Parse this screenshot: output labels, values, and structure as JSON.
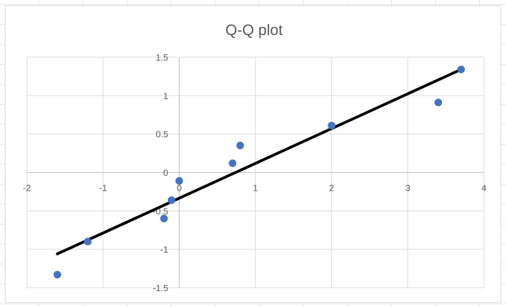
{
  "chart_data": {
    "type": "scatter",
    "title": "Q-Q plot",
    "xlabel": "",
    "ylabel": "",
    "xlim": [
      -2,
      4
    ],
    "ylim": [
      -1.5,
      1.5
    ],
    "x_ticks": [
      "-2",
      "-1",
      "0",
      "1",
      "2",
      "3",
      "4"
    ],
    "y_ticks": [
      "-1.5",
      "-1",
      "-0.5",
      "0",
      "0.5",
      "1",
      "1.5"
    ],
    "x_tick_values": [
      -2,
      -1,
      0,
      1,
      2,
      3,
      4
    ],
    "y_tick_values": [
      -1.5,
      -1,
      -0.5,
      0,
      0.5,
      1,
      1.5
    ],
    "grid": true,
    "legend": "none",
    "series": [
      {
        "color": "#4472c4",
        "points": [
          {
            "x": -1.6,
            "y": -1.33
          },
          {
            "x": -1.2,
            "y": -0.9
          },
          {
            "x": -0.2,
            "y": -0.6
          },
          {
            "x": -0.1,
            "y": -0.36
          },
          {
            "x": 0.0,
            "y": -0.11
          },
          {
            "x": 0.7,
            "y": 0.12
          },
          {
            "x": 0.8,
            "y": 0.35
          },
          {
            "x": 2.0,
            "y": 0.61
          },
          {
            "x": 3.4,
            "y": 0.91
          },
          {
            "x": 3.7,
            "y": 1.34
          }
        ]
      }
    ],
    "trendline": {
      "color": "#000000",
      "from": {
        "x": -1.6,
        "y": -1.06
      },
      "to": {
        "x": 3.7,
        "y": 1.34
      }
    }
  }
}
